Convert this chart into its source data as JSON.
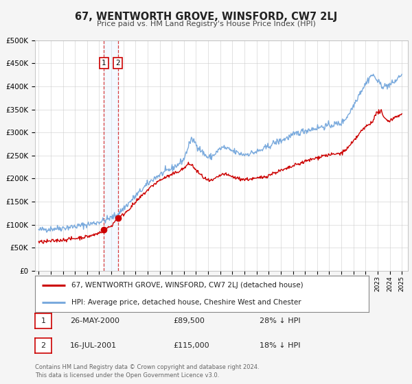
{
  "title": "67, WENTWORTH GROVE, WINSFORD, CW7 2LJ",
  "subtitle": "Price paid vs. HM Land Registry's House Price Index (HPI)",
  "ylim": [
    0,
    500000
  ],
  "yticks": [
    0,
    50000,
    100000,
    150000,
    200000,
    250000,
    300000,
    350000,
    400000,
    450000,
    500000
  ],
  "ytick_labels": [
    "£0",
    "£50K",
    "£100K",
    "£150K",
    "£200K",
    "£250K",
    "£300K",
    "£350K",
    "£400K",
    "£450K",
    "£500K"
  ],
  "xlim_start": 1994.7,
  "xlim_end": 2025.5,
  "xtick_years": [
    1995,
    1996,
    1997,
    1998,
    1999,
    2000,
    2001,
    2002,
    2003,
    2004,
    2005,
    2006,
    2007,
    2008,
    2009,
    2010,
    2011,
    2012,
    2013,
    2014,
    2015,
    2016,
    2017,
    2018,
    2019,
    2020,
    2021,
    2022,
    2023,
    2024,
    2025
  ],
  "bg_color": "#f5f5f5",
  "plot_bg_color": "#ffffff",
  "grid_color": "#cccccc",
  "red_line_color": "#cc0000",
  "blue_line_color": "#7aaadd",
  "vline1_x": 2000.4,
  "vline2_x": 2001.54,
  "vspan_color": "#ddeeff",
  "marker1_x": 2000.4,
  "marker1_y": 89500,
  "marker2_x": 2001.54,
  "marker2_y": 115000,
  "legend_line1": "67, WENTWORTH GROVE, WINSFORD, CW7 2LJ (detached house)",
  "legend_line2": "HPI: Average price, detached house, Cheshire West and Chester",
  "table_row1_num": "1",
  "table_row1_date": "26-MAY-2000",
  "table_row1_price": "£89,500",
  "table_row1_hpi": "28% ↓ HPI",
  "table_row2_num": "2",
  "table_row2_date": "16-JUL-2001",
  "table_row2_price": "£115,000",
  "table_row2_hpi": "18% ↓ HPI",
  "footer": "Contains HM Land Registry data © Crown copyright and database right 2024.\nThis data is licensed under the Open Government Licence v3.0."
}
